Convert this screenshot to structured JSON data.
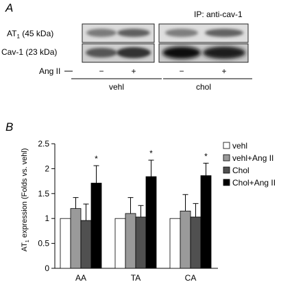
{
  "panel_a": {
    "label": "A",
    "ip_label": "IP: anti-cav-1",
    "rows": [
      {
        "label_main": "AT",
        "label_sub": "1",
        "label_rest": " (45 kDa)"
      },
      {
        "label_main": "Cav-1 (23 kDa)",
        "label_sub": "",
        "label_rest": ""
      }
    ],
    "treatment_label": "Ang II",
    "lane_signs": [
      "−",
      "+",
      "−",
      "+"
    ],
    "groups": [
      "vehl",
      "chol"
    ]
  },
  "panel_b": {
    "label": "B",
    "significance_marker": "*",
    "ylabel_main": "AT",
    "ylabel_sub": "1",
    "ylabel_rest": " expression (Folds vs. vehl)"
  },
  "chart_data": {
    "type": "bar",
    "categories": [
      "AA",
      "TA",
      "CA"
    ],
    "ylim": [
      0,
      2.5
    ],
    "yticks": [
      "0",
      "0.5",
      "1",
      "1.5",
      "2",
      "2.5"
    ],
    "ytick_values": [
      0,
      0.5,
      1,
      1.5,
      2,
      2.5
    ],
    "legend_position": "right",
    "series": [
      {
        "name": "vehl",
        "color": "#ffffff",
        "values": [
          1.0,
          1.0,
          1.0
        ],
        "errors": [
          0,
          0,
          0
        ]
      },
      {
        "name": "vehl+Ang II",
        "color": "#9a9a9a",
        "values": [
          1.2,
          1.1,
          1.15
        ],
        "errors": [
          0.22,
          0.32,
          0.33
        ]
      },
      {
        "name": "Chol",
        "color": "#505050",
        "values": [
          0.96,
          1.03,
          1.03
        ],
        "errors": [
          0.33,
          0.23,
          0.27
        ]
      },
      {
        "name": "Chol+Ang II",
        "color": "#000000",
        "values": [
          1.71,
          1.84,
          1.86
        ],
        "errors": [
          0.35,
          0.33,
          0.25
        ]
      }
    ],
    "significant_series": "Chol+Ang II"
  }
}
